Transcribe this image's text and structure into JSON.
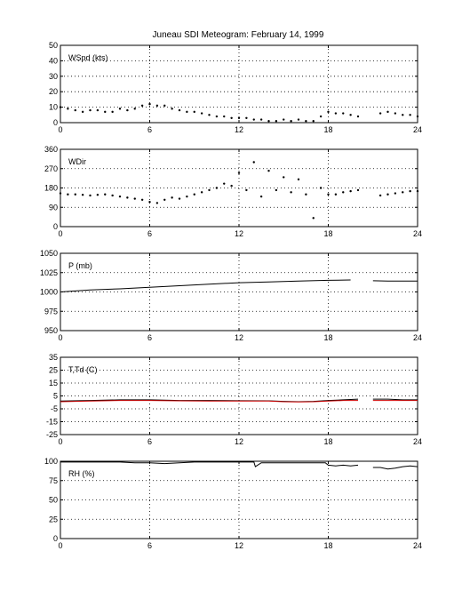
{
  "title": "Juneau SDI Meteogram:  February 14, 1999",
  "colors": {
    "trace": "#000000",
    "dewpoint": "#cc0000",
    "axes": "#000000",
    "background": "#ffffff"
  },
  "chart_data": [
    {
      "type": "scatter",
      "label": "WSpd (kts)",
      "xlim": [
        0,
        24
      ],
      "ylim": [
        0,
        50
      ],
      "xticks": [
        0,
        6,
        12,
        18,
        24
      ],
      "yticks": [
        0,
        10,
        20,
        30,
        40,
        50
      ],
      "grid": true,
      "x": [
        0,
        0.5,
        1,
        1.5,
        2,
        2.5,
        3,
        3.5,
        4,
        4.5,
        5,
        5.5,
        6,
        6.5,
        7,
        7.5,
        8,
        8.5,
        9,
        9.5,
        10,
        10.5,
        11,
        11.5,
        12,
        12.5,
        13,
        13.5,
        14,
        14.5,
        15,
        15.5,
        16,
        16.5,
        17,
        17.5,
        18,
        18.5,
        19,
        19.5,
        20,
        20.5,
        21,
        21.5,
        22,
        22.5,
        23,
        23.5,
        24
      ],
      "series": [
        {
          "values": [
            10,
            9,
            8,
            7,
            8,
            8,
            7,
            7,
            9,
            8,
            9,
            11,
            12,
            11,
            11,
            9,
            8,
            7,
            7,
            6,
            5,
            4,
            4,
            3,
            3,
            3,
            2,
            2,
            1,
            1,
            2,
            1,
            2,
            1,
            1,
            4,
            7,
            6,
            6,
            5,
            4,
            null,
            null,
            6,
            7,
            6,
            5,
            5,
            4
          ]
        }
      ]
    },
    {
      "type": "scatter",
      "label": "WDir",
      "xlim": [
        0,
        24
      ],
      "ylim": [
        0,
        360
      ],
      "xticks": [
        0,
        6,
        12,
        18,
        24
      ],
      "yticks": [
        0,
        90,
        180,
        270,
        360
      ],
      "grid": true,
      "x": [
        0,
        0.5,
        1,
        1.5,
        2,
        2.5,
        3,
        3.5,
        4,
        4.5,
        5,
        5.5,
        6,
        6.5,
        7,
        7.5,
        8,
        8.5,
        9,
        9.5,
        10,
        10.5,
        11,
        11.5,
        12,
        12.5,
        13,
        13.5,
        14,
        14.5,
        15,
        15.5,
        16,
        16.5,
        17,
        17.5,
        18,
        18.5,
        19,
        19.5,
        20,
        20.5,
        21,
        21.5,
        22,
        22.5,
        23,
        23.5,
        24
      ],
      "series": [
        {
          "values": [
            155,
            150,
            150,
            148,
            145,
            148,
            150,
            145,
            140,
            135,
            130,
            125,
            115,
            110,
            125,
            135,
            130,
            140,
            150,
            160,
            170,
            180,
            200,
            190,
            250,
            170,
            300,
            140,
            260,
            170,
            230,
            160,
            220,
            150,
            40,
            180,
            150,
            150,
            160,
            165,
            170,
            null,
            null,
            145,
            150,
            155,
            160,
            165,
            165
          ]
        }
      ]
    },
    {
      "type": "line",
      "label": "P (mb)",
      "xlim": [
        0,
        24
      ],
      "ylim": [
        950,
        1050
      ],
      "xticks": [
        0,
        6,
        12,
        18,
        24
      ],
      "yticks": [
        950,
        975,
        1000,
        1025,
        1050
      ],
      "grid": true,
      "x": [
        0,
        2,
        4,
        6,
        8,
        10,
        12,
        14,
        16,
        18,
        19.5,
        20.2,
        21,
        22,
        23,
        24
      ],
      "series": [
        {
          "values": [
            1000,
            1002.5,
            1004,
            1006,
            1008,
            1010,
            1012,
            1013,
            1014,
            1015,
            1015.5,
            null,
            1014.5,
            1014,
            1014,
            1014
          ]
        }
      ]
    },
    {
      "type": "line",
      "label": "T,Td (C)",
      "xlim": [
        0,
        24
      ],
      "ylim": [
        -25,
        35
      ],
      "xticks": [
        0,
        6,
        12,
        18,
        24
      ],
      "yticks": [
        -25,
        -15,
        -5,
        5,
        15,
        25,
        35
      ],
      "grid": true,
      "x": [
        0,
        2,
        4,
        6,
        8,
        10,
        12,
        14,
        15,
        16,
        17,
        18,
        19,
        20,
        20.5,
        21,
        22,
        23,
        24
      ],
      "series": [
        {
          "name": "T",
          "color": "#000000",
          "values": [
            1,
            1.5,
            2,
            2,
            1.5,
            1.5,
            1.3,
            1.2,
            0.8,
            0.5,
            0.8,
            1.5,
            2,
            2.5,
            null,
            2.5,
            2.5,
            2,
            2
          ]
        },
        {
          "name": "Td",
          "color": "#cc0000",
          "values": [
            0.5,
            1,
            1.5,
            1.5,
            1.2,
            1,
            1,
            1,
            0.5,
            0.3,
            0.5,
            1,
            1.5,
            1.5,
            null,
            1.5,
            1.5,
            1.5,
            1.5
          ]
        }
      ]
    },
    {
      "type": "line",
      "label": "RH (%)",
      "xlim": [
        0,
        24
      ],
      "ylim": [
        0,
        100
      ],
      "xticks": [
        0,
        6,
        12,
        18,
        24
      ],
      "yticks": [
        0,
        25,
        50,
        75,
        100
      ],
      "grid": true,
      "x": [
        0,
        1,
        2,
        3,
        4,
        5,
        6,
        7,
        8,
        9,
        10,
        11,
        12,
        13,
        13.1,
        13.5,
        14,
        15,
        16,
        17,
        17.8,
        18,
        18.5,
        19,
        19.5,
        20,
        20.5,
        21,
        21.5,
        22,
        22.5,
        23,
        23.5,
        24
      ],
      "series": [
        {
          "values": [
            99,
            99,
            99,
            99,
            99,
            98,
            98,
            97,
            98,
            99,
            99,
            99,
            99,
            99,
            93,
            98,
            98,
            98,
            98,
            98,
            98,
            95,
            94,
            95,
            94,
            95,
            null,
            92,
            92,
            90,
            91,
            93,
            94,
            93
          ]
        }
      ]
    }
  ]
}
